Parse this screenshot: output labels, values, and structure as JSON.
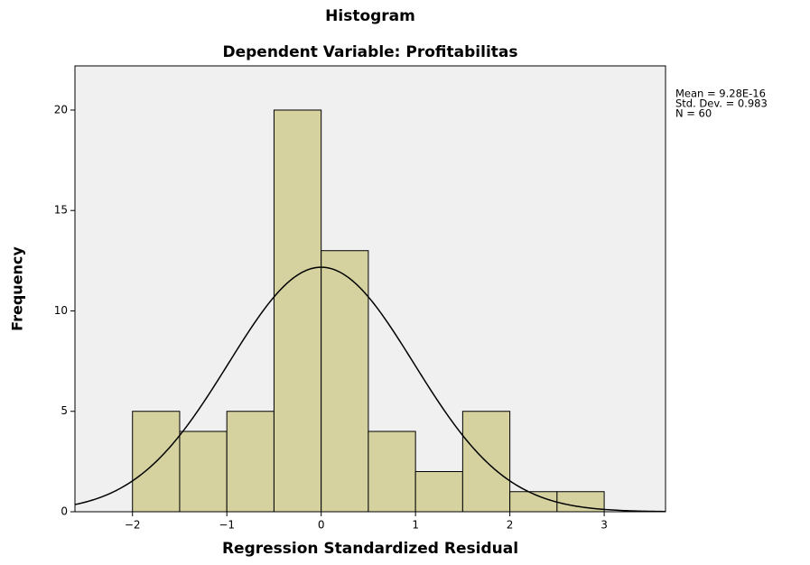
{
  "chart_data": {
    "type": "histogram",
    "title": "Histogram",
    "subtitle": "Dependent Variable: Profitabilitas",
    "x_label": "Regression Standardized Residual",
    "y_label": "Frequency",
    "bins": [
      -2,
      -1.5,
      -1,
      -0.5,
      0,
      0.5,
      1,
      1.5,
      2,
      2.5,
      3
    ],
    "values": [
      5,
      4,
      5,
      20,
      13,
      4,
      2,
      5,
      1,
      1
    ],
    "color": "#d6d2a0",
    "plot_background": "#f0f0f0",
    "xlim": [
      -2.61,
      3.65
    ],
    "ylim": [
      0,
      22.2
    ],
    "xticks": [
      {
        "value": -2,
        "label": "−2"
      },
      {
        "value": -1,
        "label": "−1"
      },
      0,
      1,
      2,
      3
    ],
    "yticks": [
      0,
      5,
      10,
      15,
      20
    ],
    "normal_curve": {
      "mean": {
        "value": 9.28e-16,
        "label": "Mean = 9.28E-16"
      },
      "sd": {
        "value": 0.983,
        "label": "Std. Dev. = 0.983"
      },
      "n": {
        "value": 60,
        "label": "N = 60"
      }
    }
  }
}
